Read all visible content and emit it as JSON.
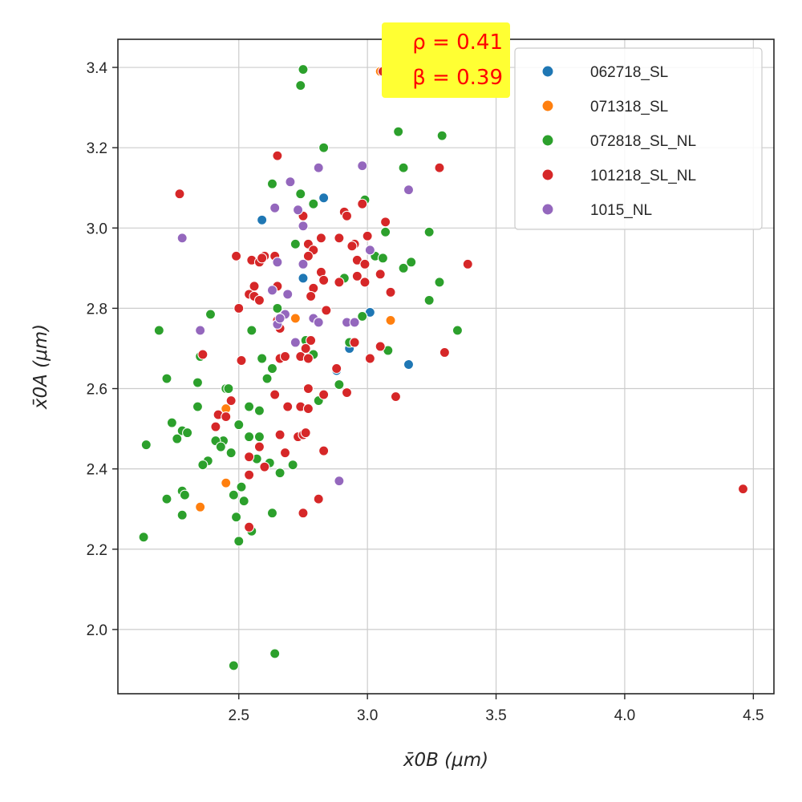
{
  "chart_data": {
    "type": "scatter",
    "xlabel": "x̄0B (μm)",
    "ylabel": "x̄0A (μm)",
    "xlim": [
      2.03,
      4.58
    ],
    "ylim": [
      1.84,
      3.47
    ],
    "x_ticks": [
      2.5,
      3.0,
      3.5,
      4.0,
      4.5
    ],
    "y_ticks": [
      2.0,
      2.2,
      2.4,
      2.6,
      2.8,
      3.0,
      3.2,
      3.4
    ],
    "x_tick_labels": [
      "2.5",
      "3.0",
      "3.5",
      "4.0",
      "4.5"
    ],
    "y_tick_labels": [
      "2.0",
      "2.2",
      "2.4",
      "2.6",
      "2.8",
      "3.0",
      "3.2",
      "3.4"
    ],
    "grid": true,
    "legend_position": "top-right",
    "annotation": {
      "line1": "ρ = 0.41",
      "line2": "β = 0.39",
      "color": "#ff0000",
      "background": "#ffff33"
    },
    "series": [
      {
        "name": "062718_SL",
        "color": "#1f77b4",
        "points": [
          [
            2.59,
            3.02
          ],
          [
            2.83,
            3.075
          ],
          [
            2.75,
            2.875
          ],
          [
            3.01,
            2.79
          ],
          [
            2.93,
            2.7
          ],
          [
            3.16,
            2.66
          ],
          [
            2.88,
            2.645
          ]
        ]
      },
      {
        "name": "071318_SL",
        "color": "#ff7f0e",
        "points": [
          [
            3.05,
            3.39
          ],
          [
            2.72,
            2.775
          ],
          [
            3.09,
            2.77
          ],
          [
            2.45,
            2.55
          ],
          [
            2.45,
            2.365
          ],
          [
            2.35,
            2.305
          ]
        ]
      },
      {
        "name": "072818_SL_NL",
        "color": "#2ca02c",
        "points": [
          [
            2.75,
            3.395
          ],
          [
            2.74,
            3.355
          ],
          [
            3.12,
            3.24
          ],
          [
            3.29,
            3.23
          ],
          [
            2.83,
            3.2
          ],
          [
            3.14,
            3.15
          ],
          [
            2.63,
            3.11
          ],
          [
            2.74,
            3.085
          ],
          [
            2.79,
            3.06
          ],
          [
            2.99,
            3.07
          ],
          [
            3.07,
            2.99
          ],
          [
            3.24,
            2.99
          ],
          [
            2.72,
            2.96
          ],
          [
            3.03,
            2.93
          ],
          [
            3.06,
            2.925
          ],
          [
            3.17,
            2.915
          ],
          [
            3.14,
            2.9
          ],
          [
            2.91,
            2.875
          ],
          [
            3.28,
            2.865
          ],
          [
            3.24,
            2.82
          ],
          [
            2.65,
            2.8
          ],
          [
            2.39,
            2.785
          ],
          [
            2.98,
            2.78
          ],
          [
            2.55,
            2.745
          ],
          [
            2.19,
            2.745
          ],
          [
            3.35,
            2.745
          ],
          [
            2.76,
            2.72
          ],
          [
            2.93,
            2.715
          ],
          [
            2.59,
            2.675
          ],
          [
            2.35,
            2.68
          ],
          [
            3.08,
            2.695
          ],
          [
            2.79,
            2.685
          ],
          [
            2.63,
            2.65
          ],
          [
            2.61,
            2.625
          ],
          [
            2.22,
            2.625
          ],
          [
            2.34,
            2.615
          ],
          [
            2.89,
            2.61
          ],
          [
            2.81,
            2.57
          ],
          [
            2.45,
            2.6
          ],
          [
            2.46,
            2.6
          ],
          [
            2.34,
            2.555
          ],
          [
            2.54,
            2.555
          ],
          [
            2.58,
            2.545
          ],
          [
            2.5,
            2.51
          ],
          [
            2.24,
            2.515
          ],
          [
            2.28,
            2.495
          ],
          [
            2.3,
            2.49
          ],
          [
            2.44,
            2.47
          ],
          [
            2.54,
            2.48
          ],
          [
            2.58,
            2.48
          ],
          [
            2.41,
            2.47
          ],
          [
            2.43,
            2.455
          ],
          [
            2.26,
            2.475
          ],
          [
            2.47,
            2.44
          ],
          [
            2.57,
            2.425
          ],
          [
            2.62,
            2.415
          ],
          [
            2.71,
            2.41
          ],
          [
            2.66,
            2.39
          ],
          [
            2.38,
            2.42
          ],
          [
            2.36,
            2.41
          ],
          [
            2.28,
            2.345
          ],
          [
            2.29,
            2.335
          ],
          [
            2.22,
            2.325
          ],
          [
            2.48,
            2.335
          ],
          [
            2.51,
            2.355
          ],
          [
            2.52,
            2.32
          ],
          [
            2.28,
            2.285
          ],
          [
            2.49,
            2.28
          ],
          [
            2.63,
            2.29
          ],
          [
            2.55,
            2.245
          ],
          [
            2.5,
            2.22
          ],
          [
            2.13,
            2.23
          ],
          [
            2.14,
            2.46
          ],
          [
            2.48,
            1.91
          ],
          [
            2.64,
            1.94
          ]
        ]
      },
      {
        "name": "101218_SL_NL",
        "color": "#d62728",
        "points": [
          [
            3.06,
            3.39
          ],
          [
            2.27,
            3.085
          ],
          [
            2.65,
            3.18
          ],
          [
            3.28,
            3.15
          ],
          [
            2.98,
            3.06
          ],
          [
            3.07,
            3.015
          ],
          [
            2.75,
            3.03
          ],
          [
            2.91,
            3.04
          ],
          [
            2.92,
            3.03
          ],
          [
            3.0,
            2.98
          ],
          [
            2.82,
            2.975
          ],
          [
            2.89,
            2.975
          ],
          [
            2.95,
            2.96
          ],
          [
            2.77,
            2.96
          ],
          [
            2.79,
            2.945
          ],
          [
            2.94,
            2.955
          ],
          [
            2.49,
            2.93
          ],
          [
            2.6,
            2.93
          ],
          [
            2.55,
            2.92
          ],
          [
            2.58,
            2.915
          ],
          [
            2.59,
            2.925
          ],
          [
            2.64,
            2.93
          ],
          [
            2.77,
            2.93
          ],
          [
            2.96,
            2.92
          ],
          [
            2.99,
            2.91
          ],
          [
            3.39,
            2.91
          ],
          [
            2.82,
            2.89
          ],
          [
            3.05,
            2.885
          ],
          [
            2.96,
            2.88
          ],
          [
            2.83,
            2.87
          ],
          [
            2.89,
            2.865
          ],
          [
            2.99,
            2.865
          ],
          [
            2.56,
            2.855
          ],
          [
            2.79,
            2.85
          ],
          [
            2.65,
            2.855
          ],
          [
            2.54,
            2.835
          ],
          [
            2.56,
            2.83
          ],
          [
            2.58,
            2.82
          ],
          [
            3.09,
            2.84
          ],
          [
            2.78,
            2.83
          ],
          [
            2.5,
            2.8
          ],
          [
            2.84,
            2.795
          ],
          [
            2.65,
            2.77
          ],
          [
            2.66,
            2.75
          ],
          [
            2.78,
            2.72
          ],
          [
            2.76,
            2.7
          ],
          [
            2.95,
            2.715
          ],
          [
            3.05,
            2.705
          ],
          [
            2.36,
            2.685
          ],
          [
            2.74,
            2.68
          ],
          [
            2.77,
            2.675
          ],
          [
            3.01,
            2.675
          ],
          [
            2.51,
            2.67
          ],
          [
            2.66,
            2.675
          ],
          [
            2.68,
            2.68
          ],
          [
            3.3,
            2.69
          ],
          [
            2.88,
            2.65
          ],
          [
            2.64,
            2.585
          ],
          [
            2.92,
            2.59
          ],
          [
            2.83,
            2.585
          ],
          [
            3.11,
            2.58
          ],
          [
            2.47,
            2.57
          ],
          [
            2.77,
            2.6
          ],
          [
            2.69,
            2.555
          ],
          [
            2.74,
            2.555
          ],
          [
            2.77,
            2.55
          ],
          [
            2.42,
            2.535
          ],
          [
            2.45,
            2.53
          ],
          [
            2.41,
            2.505
          ],
          [
            2.66,
            2.485
          ],
          [
            2.73,
            2.48
          ],
          [
            2.75,
            2.485
          ],
          [
            2.76,
            2.49
          ],
          [
            2.58,
            2.455
          ],
          [
            2.54,
            2.43
          ],
          [
            2.68,
            2.44
          ],
          [
            2.83,
            2.445
          ],
          [
            2.54,
            2.385
          ],
          [
            2.6,
            2.405
          ],
          [
            2.81,
            2.325
          ],
          [
            2.75,
            2.29
          ],
          [
            2.54,
            2.255
          ],
          [
            4.46,
            2.35
          ]
        ]
      },
      {
        "name": "1015_NL",
        "color": "#9467bd",
        "points": [
          [
            2.98,
            3.155
          ],
          [
            2.81,
            3.15
          ],
          [
            3.16,
            3.095
          ],
          [
            2.7,
            3.115
          ],
          [
            2.64,
            3.05
          ],
          [
            2.73,
            3.045
          ],
          [
            2.28,
            2.975
          ],
          [
            2.75,
            3.005
          ],
          [
            3.01,
            2.945
          ],
          [
            2.65,
            2.915
          ],
          [
            2.75,
            2.91
          ],
          [
            2.63,
            2.845
          ],
          [
            2.69,
            2.835
          ],
          [
            2.68,
            2.785
          ],
          [
            2.79,
            2.775
          ],
          [
            2.81,
            2.765
          ],
          [
            2.92,
            2.765
          ],
          [
            2.95,
            2.765
          ],
          [
            2.65,
            2.76
          ],
          [
            2.35,
            2.745
          ],
          [
            2.72,
            2.715
          ],
          [
            2.89,
            2.37
          ],
          [
            2.66,
            2.775
          ]
        ]
      }
    ]
  }
}
